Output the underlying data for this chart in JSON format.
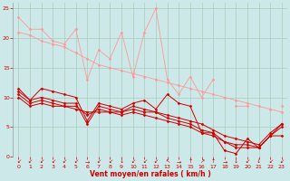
{
  "bg_color": "#cce8e8",
  "grid_color": "#aaccbb",
  "xlabel": "Vent moyen/en rafales ( km/h )",
  "ylabel_ticks": [
    0,
    5,
    10,
    15,
    20,
    25
  ],
  "xlim": [
    -0.5,
    23.5
  ],
  "ylim": [
    0,
    26
  ],
  "x": [
    0,
    1,
    2,
    3,
    4,
    5,
    6,
    7,
    8,
    9,
    10,
    11,
    12,
    13,
    14,
    15,
    16,
    17,
    18,
    19,
    20,
    21,
    22,
    23
  ],
  "series_light": [
    [
      23.5,
      21.5,
      21.5,
      19.5,
      19.0,
      21.5,
      13.0,
      18.0,
      16.5,
      21.0,
      13.5,
      21.0,
      25.0,
      13.0,
      10.5,
      13.5,
      10.0,
      13.0,
      null,
      8.5,
      8.5,
      null,
      null,
      8.5
    ],
    [
      21.0,
      20.5,
      19.5,
      19.0,
      18.5,
      17.5,
      16.5,
      15.5,
      15.0,
      14.5,
      14.0,
      13.5,
      13.0,
      12.5,
      12.0,
      11.5,
      11.0,
      10.5,
      10.0,
      9.5,
      9.0,
      8.5,
      8.0,
      7.5
    ]
  ],
  "series_dark": [
    [
      11.5,
      9.5,
      11.5,
      11.0,
      10.5,
      10.0,
      6.0,
      9.0,
      8.5,
      8.0,
      9.0,
      9.5,
      8.0,
      10.5,
      9.0,
      8.5,
      4.0,
      4.0,
      1.0,
      0.5,
      3.0,
      1.5,
      3.5,
      3.5
    ],
    [
      11.0,
      9.5,
      10.0,
      9.5,
      9.0,
      9.0,
      5.5,
      8.5,
      8.0,
      7.5,
      8.5,
      8.0,
      7.5,
      7.0,
      6.5,
      6.0,
      5.5,
      4.5,
      3.5,
      3.0,
      2.5,
      2.0,
      4.0,
      5.5
    ],
    [
      10.5,
      9.0,
      9.5,
      9.0,
      8.5,
      8.5,
      7.0,
      8.0,
      7.5,
      7.5,
      8.0,
      7.5,
      7.5,
      6.5,
      6.0,
      5.5,
      4.5,
      4.0,
      2.5,
      2.0,
      2.0,
      1.5,
      3.5,
      5.0
    ],
    [
      10.0,
      8.5,
      9.0,
      8.5,
      8.5,
      8.0,
      7.5,
      7.5,
      7.5,
      7.0,
      7.5,
      7.0,
      6.5,
      6.0,
      5.5,
      5.0,
      4.0,
      3.5,
      2.5,
      1.5,
      1.5,
      1.5,
      3.5,
      5.5
    ]
  ],
  "wind_arrows": [
    "↙",
    "↙",
    "↙",
    "↙",
    "↙",
    "↙",
    "→",
    "↙",
    "↙",
    "↓",
    "↙",
    "↙",
    "↙",
    "↖",
    "→",
    "↑",
    "↗",
    "↑",
    "→",
    "↓",
    "↙",
    "↓",
    "↙",
    "↙"
  ],
  "light_color": "#ff9999",
  "dark_color": "#cc0000",
  "marker": "D",
  "marker_size": 1.5,
  "lw_light": 0.6,
  "lw_dark": 0.7,
  "axis_fontsize": 5.5,
  "tick_fontsize": 4.5,
  "arrow_fontsize": 4.5
}
